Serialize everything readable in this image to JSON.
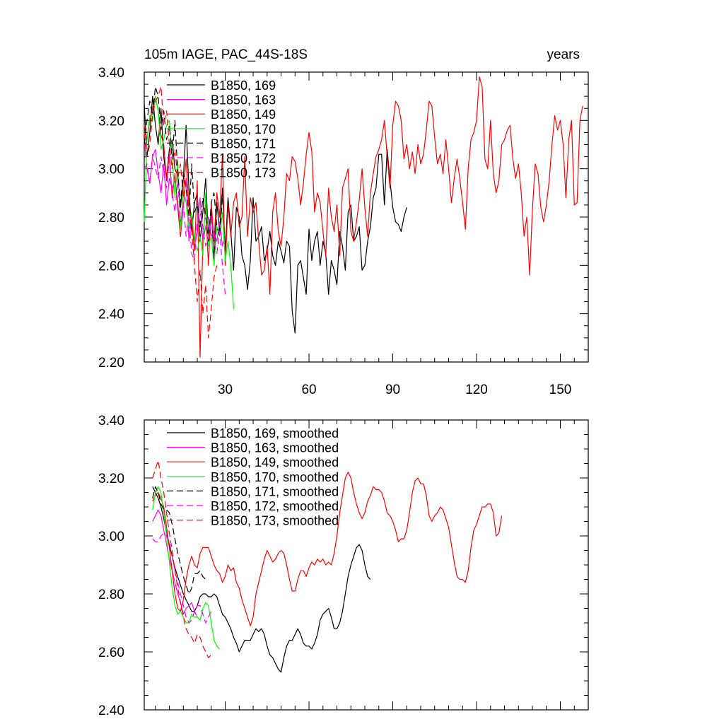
{
  "colors": {
    "black": "#000000",
    "magenta": "#ff00ff",
    "red": "#ff0000",
    "green": "#00ff00"
  },
  "chart_data": [
    {
      "type": "line",
      "title": "105m IAGE, PAC_44S-18S",
      "units_label": "years",
      "xlabel": "",
      "ylabel": "",
      "xlim": [
        1,
        160
      ],
      "ylim": [
        2.2,
        3.4
      ],
      "xticks": [
        30,
        60,
        90,
        120,
        150
      ],
      "xtick_labels": [
        "30",
        "60",
        "90",
        "120",
        "150"
      ],
      "yticks": [
        2.2,
        2.4,
        2.6,
        2.8,
        3.0,
        3.2,
        3.4
      ],
      "ytick_labels": [
        "2.20",
        "2.40",
        "2.60",
        "2.80",
        "3.00",
        "3.20",
        "3.40"
      ],
      "legend_position": "top-left",
      "series": [
        {
          "name": "B1850, 169",
          "color": "#000000",
          "dash": "solid",
          "start": 1,
          "values": [
            3.27,
            3.05,
            3.15,
            3.3,
            3.18,
            3.1,
            3.25,
            3.05,
            2.96,
            3.08,
            3.12,
            3.0,
            2.97,
            2.84,
            2.96,
            3.18,
            2.92,
            2.74,
            2.86,
            2.9,
            2.7,
            2.82,
            2.96,
            2.72,
            2.83,
            2.62,
            2.86,
            2.74,
            2.92,
            2.66,
            2.88,
            2.74,
            2.58,
            2.84,
            2.8,
            2.64,
            2.6,
            2.5,
            2.62,
            2.88,
            2.7,
            2.72,
            2.76,
            2.62,
            2.66,
            2.74,
            2.64,
            2.6,
            2.7,
            2.66,
            2.61,
            2.7,
            2.68,
            2.41,
            2.32,
            2.6,
            2.62,
            2.55,
            2.48,
            2.75,
            2.62,
            2.7,
            2.74,
            2.6,
            2.7,
            2.65,
            2.48,
            2.62,
            2.58,
            2.52,
            2.74,
            2.68,
            2.58,
            2.82,
            2.85,
            2.7,
            2.72,
            2.76,
            2.58,
            2.6,
            2.7,
            2.76,
            2.88,
            2.92,
            3.06,
            3.06,
            2.85,
            3.08,
            2.95,
            2.84,
            2.78,
            2.77,
            2.74,
            2.8,
            2.84
          ]
        },
        {
          "name": "B1850, 163",
          "color": "#ff00ff",
          "dash": "solid",
          "start": 1,
          "values": [
            3.12,
            3.0,
            2.94,
            3.05,
            3.08,
            2.98,
            2.9,
            3.02,
            2.85,
            2.96,
            2.92,
            2.95,
            2.86,
            2.72,
            2.84,
            2.96,
            2.7,
            2.8,
            2.68,
            2.74,
            2.88,
            2.7,
            2.76,
            2.8,
            2.72,
            2.74,
            2.7,
            2.78,
            2.68,
            2.72
          ]
        },
        {
          "name": "B1850, 149",
          "color": "#ff0000",
          "dash": "solid",
          "start": 1,
          "values": [
            3.18,
            3.12,
            3.2,
            3.25,
            3.3,
            3.24,
            3.14,
            3.1,
            2.95,
            3.06,
            2.88,
            2.98,
            2.84,
            2.72,
            2.9,
            3.04,
            2.84,
            2.78,
            2.66,
            2.95,
            2.22,
            2.7,
            2.85,
            2.6,
            2.86,
            2.7,
            2.9,
            2.8,
            3.06,
            2.6,
            2.85,
            2.72,
            2.86,
            2.9,
            2.76,
            2.8,
            3.05,
            2.72,
            2.88,
            2.82,
            2.86,
            2.7,
            2.56,
            2.58,
            2.68,
            2.48,
            2.82,
            2.9,
            2.74,
            2.68,
            2.8,
            2.98,
            2.95,
            3.05,
            3.03,
            2.96,
            2.85,
            2.94,
            3.06,
            3.15,
            3.07,
            2.82,
            2.9,
            2.86,
            2.74,
            2.64,
            2.92,
            2.8,
            2.74,
            2.85,
            2.64,
            2.92,
            2.96,
            3.0,
            2.74,
            2.7,
            2.78,
            2.87,
            3.0,
            2.84,
            2.72,
            2.9,
            2.98,
            3.05,
            3.08,
            3.12,
            3.2,
            3.05,
            2.92,
            3.18,
            3.28,
            3.26,
            3.2,
            3.04,
            3.1,
            3.0,
            3.07,
            2.98,
            3.1,
            3.02,
            3.06,
            3.16,
            3.28,
            3.26,
            3.13,
            3.02,
            3.06,
            2.98,
            3.12,
            3.0,
            2.86,
            2.96,
            3.04,
            2.96,
            2.86,
            2.75,
            3.0,
            3.12,
            3.15,
            3.2,
            3.38,
            3.34,
            3.04,
            3.0,
            3.2,
            2.98,
            2.9,
            2.95,
            3.1,
            3.12,
            3.16,
            3.18,
            3.04,
            2.96,
            3.02,
            2.9,
            2.72,
            2.8,
            2.56,
            2.83,
            3.02,
            2.98,
            2.84,
            2.78,
            2.85,
            2.95,
            3.1,
            3.22,
            3.16,
            3.2,
            3.1,
            2.88,
            3.12,
            3.2,
            2.85,
            2.86,
            3.2,
            3.26
          ]
        },
        {
          "name": "B1850, 170",
          "color": "#00ff00",
          "dash": "solid",
          "start": 1,
          "values": [
            2.78,
            3.12,
            3.22,
            3.2,
            3.3,
            3.24,
            3.08,
            3.12,
            3.18,
            3.2,
            3.05,
            2.88,
            3.03,
            2.74,
            2.92,
            2.86,
            2.75,
            2.82,
            2.7,
            2.66,
            2.72,
            2.64,
            2.9,
            2.68,
            2.72,
            2.6,
            2.76,
            2.72,
            2.82,
            2.62,
            2.7,
            2.6,
            2.42
          ]
        },
        {
          "name": "B1850, 171",
          "color": "#000000",
          "dash": "dashed",
          "start": 1,
          "values": [
            3.1,
            3.2,
            3.28,
            3.22,
            3.34,
            3.3,
            3.16,
            3.24,
            3.12,
            3.18,
            3.04,
            3.2,
            2.98,
            2.86,
            2.98,
            2.92,
            2.8,
            3.02,
            2.82,
            2.85,
            2.76,
            2.88,
            2.8,
            2.7,
            2.86,
            2.9,
            2.76,
            2.72,
            2.88
          ]
        },
        {
          "name": "B1850, 172",
          "color": "#ff00ff",
          "dash": "dashed",
          "start": 1,
          "values": [
            3.0,
            3.02,
            2.94,
            3.06,
            3.0,
            2.96,
            3.05,
            2.98,
            2.92,
            3.04,
            2.9,
            2.82,
            2.95,
            2.78,
            2.86,
            2.72,
            2.8,
            2.65,
            2.62,
            2.78,
            2.82,
            2.76,
            2.68,
            2.72,
            2.8,
            2.7,
            2.65,
            2.74,
            2.6,
            2.48
          ]
        },
        {
          "name": "B1850, 173",
          "color": "#ff0000",
          "dash": "dashed",
          "start": 1,
          "values": [
            3.15,
            3.05,
            3.1,
            3.22,
            3.28,
            3.3,
            3.34,
            3.18,
            3.24,
            3.1,
            3.0,
            3.08,
            2.96,
            3.02,
            2.88,
            2.94,
            2.82,
            2.74,
            2.6,
            2.45,
            2.58,
            2.4,
            2.52,
            2.3,
            2.42,
            2.55,
            2.6
          ]
        }
      ]
    },
    {
      "type": "line",
      "title": "",
      "xlabel": "",
      "ylabel": "",
      "xlim": [
        1,
        160
      ],
      "ylim": [
        2.4,
        3.4
      ],
      "xticks": [
        30,
        60,
        90,
        120,
        150
      ],
      "yticks": [
        2.4,
        2.6,
        2.8,
        3.0,
        3.2,
        3.4
      ],
      "ytick_labels": [
        "2.40",
        "2.60",
        "2.80",
        "3.00",
        "3.20",
        "3.40"
      ],
      "legend_position": "top-left",
      "series": [
        {
          "name": "B1850, 169, smoothed",
          "color": "#000000",
          "dash": "solid",
          "start": 4,
          "values": [
            3.17,
            3.15,
            3.13,
            3.1,
            3.06,
            3.01,
            2.97,
            2.93,
            2.89,
            2.86,
            2.83,
            2.8,
            2.78,
            2.76,
            2.74,
            2.74,
            2.76,
            2.79,
            2.8,
            2.8,
            2.79,
            2.79,
            2.8,
            2.79,
            2.76,
            2.73,
            2.72,
            2.7,
            2.68,
            2.65,
            2.63,
            2.6,
            2.62,
            2.64,
            2.64,
            2.64,
            2.66,
            2.68,
            2.67,
            2.68,
            2.66,
            2.62,
            2.59,
            2.58,
            2.56,
            2.54,
            2.53,
            2.58,
            2.62,
            2.64,
            2.64,
            2.66,
            2.68,
            2.66,
            2.63,
            2.62,
            2.62,
            2.61,
            2.63,
            2.66,
            2.71,
            2.73,
            2.74,
            2.75,
            2.72,
            2.68,
            2.68,
            2.7,
            2.74,
            2.8,
            2.86,
            2.9,
            2.93,
            2.96,
            2.97,
            2.95,
            2.9,
            2.86,
            2.85
          ]
        },
        {
          "name": "B1850, 163, smoothed",
          "color": "#ff00ff",
          "dash": "solid",
          "start": 4,
          "values": [
            3.05,
            3.07,
            3.09,
            3.07,
            3.02,
            2.97,
            2.92,
            2.88,
            2.84,
            2.8,
            2.77,
            2.73,
            2.75,
            2.76,
            2.77,
            2.74,
            2.72
          ]
        },
        {
          "name": "B1850, 149, smoothed",
          "color": "#ff0000",
          "dash": "solid",
          "start": 4,
          "values": [
            3.12,
            3.14,
            3.15,
            3.13,
            3.1,
            3.03,
            2.96,
            2.88,
            2.8,
            2.75,
            2.74,
            2.78,
            2.85,
            2.9,
            2.93,
            2.9,
            2.89,
            2.94,
            2.96,
            2.96,
            2.96,
            2.93,
            2.9,
            2.88,
            2.87,
            2.84,
            2.86,
            2.9,
            2.88,
            2.89,
            2.84,
            2.82,
            2.78,
            2.75,
            2.72,
            2.69,
            2.72,
            2.8,
            2.84,
            2.88,
            2.92,
            2.95,
            2.93,
            2.91,
            2.92,
            2.94,
            2.95,
            2.94,
            2.9,
            2.85,
            2.81,
            2.81,
            2.85,
            2.88,
            2.88,
            2.86,
            2.89,
            2.91,
            2.9,
            2.92,
            2.91,
            2.92,
            2.9,
            2.91,
            2.9,
            2.94,
            3.0,
            3.08,
            3.14,
            3.2,
            3.22,
            3.2,
            3.15,
            3.11,
            3.08,
            3.06,
            3.08,
            3.12,
            3.14,
            3.17,
            3.16,
            3.16,
            3.15,
            3.12,
            3.08,
            3.07,
            3.05,
            3.02,
            2.98,
            2.99,
            2.99,
            3.02,
            3.08,
            3.15,
            3.19,
            3.2,
            3.18,
            3.18,
            3.14,
            3.07,
            3.05,
            3.07,
            3.08,
            3.1,
            3.09,
            3.06,
            3.03,
            2.97,
            2.91,
            2.86,
            2.85,
            2.85,
            2.84,
            2.88,
            2.96,
            3.02,
            3.04,
            3.07,
            3.1,
            3.1,
            3.11,
            3.11,
            3.08,
            3.0,
            3.01,
            3.07
          ]
        },
        {
          "name": "B1850, 170, smoothed",
          "color": "#00ff00",
          "dash": "solid",
          "start": 4,
          "values": [
            3.09,
            3.15,
            3.17,
            3.15,
            3.08,
            3.0,
            2.91,
            2.82,
            2.76,
            2.73,
            2.74,
            2.72,
            2.7,
            2.7,
            2.73,
            2.72,
            2.72,
            2.71,
            2.75,
            2.77,
            2.76,
            2.7,
            2.64,
            2.62,
            2.61
          ]
        },
        {
          "name": "B1850, 171, smoothed",
          "color": "#000000",
          "dash": "dashed",
          "start": 4,
          "values": [
            3.13,
            3.17,
            3.15,
            3.11,
            3.09,
            3.09,
            3.08,
            3.04,
            2.99,
            2.94,
            2.9,
            2.86,
            2.83,
            2.8,
            2.82,
            2.87,
            2.87,
            2.88,
            2.86,
            2.85,
            2.85
          ]
        },
        {
          "name": "B1850, 172, smoothed",
          "color": "#ff00ff",
          "dash": "dashed",
          "start": 4,
          "values": [
            2.99,
            2.98,
            2.98,
            3.0,
            3.01,
            3.0,
            2.98,
            2.93,
            2.88,
            2.84,
            2.8,
            2.76,
            2.72,
            2.7,
            2.71,
            2.74,
            2.76,
            2.76,
            2.73,
            2.7,
            2.72,
            2.74
          ]
        },
        {
          "name": "B1850, 173, smoothed",
          "color": "#ff0000",
          "dash": "dashed",
          "start": 4,
          "values": [
            3.2,
            3.23,
            3.26,
            3.2,
            3.15,
            3.08,
            3.01,
            2.95,
            2.88,
            2.82,
            2.77,
            2.72,
            2.68,
            2.66,
            2.65,
            2.63,
            2.66,
            2.65,
            2.62,
            2.6,
            2.58,
            2.59
          ]
        }
      ]
    }
  ]
}
